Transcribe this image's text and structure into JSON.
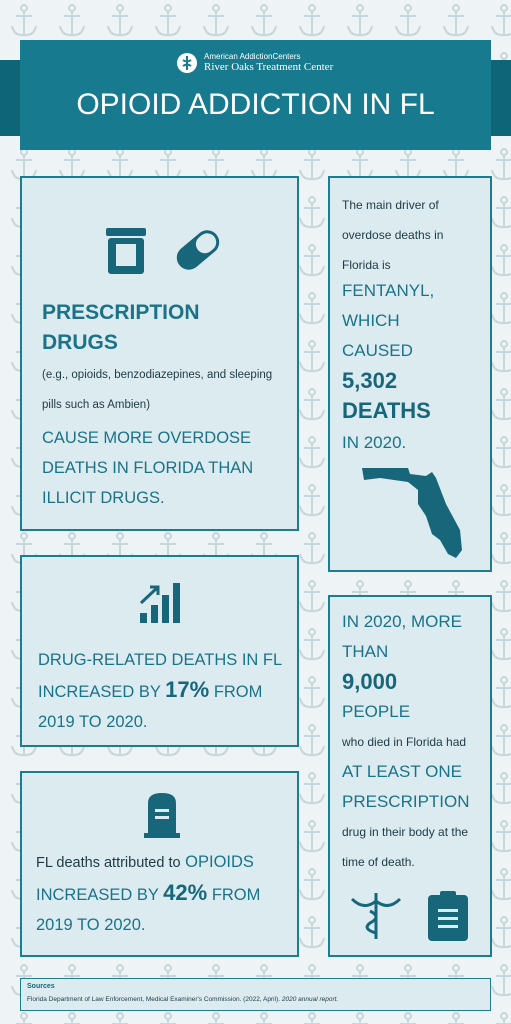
{
  "header": {
    "brand_line1": "American AddictionCenters",
    "brand_line2": "River Oaks Treatment Center",
    "title": "OPIOID ADDICTION IN FL"
  },
  "panels": [
    {
      "heading": "PRESCRIPTION DRUGS",
      "note": "(e.g., opioids, benzodiazepines, and sleeping pills such as Ambien)",
      "statement": "CAUSE MORE OVERDOSE DEATHS IN FLORIDA THAN ILLICIT DRUGS."
    },
    {
      "intro": "The main driver of overdose deaths in Florida is",
      "highlight": "FENTANYL, WHICH CAUSED",
      "number": "5,302 DEATHS",
      "tail": "IN 2020."
    },
    {
      "lead": "DRUG-RELATED DEATHS IN FL INCREASED BY",
      "number": "17%",
      "tail": "FROM 2019 TO 2020."
    },
    {
      "intro": "FL deaths attributed to",
      "lead": "OPIOIDS INCREASED BY",
      "number": "42%",
      "tail": "FROM 2019 TO 2020."
    },
    {
      "lead": "IN 2020, MORE THAN",
      "number": "9,000",
      "people": "PEOPLE",
      "text1": "who died in Florida had",
      "highlight": "AT LEAST ONE PRESCRIPTION",
      "text2": "drug in their body at the time of death."
    }
  ],
  "sources": {
    "title": "Sources",
    "citation": "Florida Department of Law Enforcement, Medical Examiner's Commission. (2022, April).",
    "report": "2020 annual report."
  }
}
